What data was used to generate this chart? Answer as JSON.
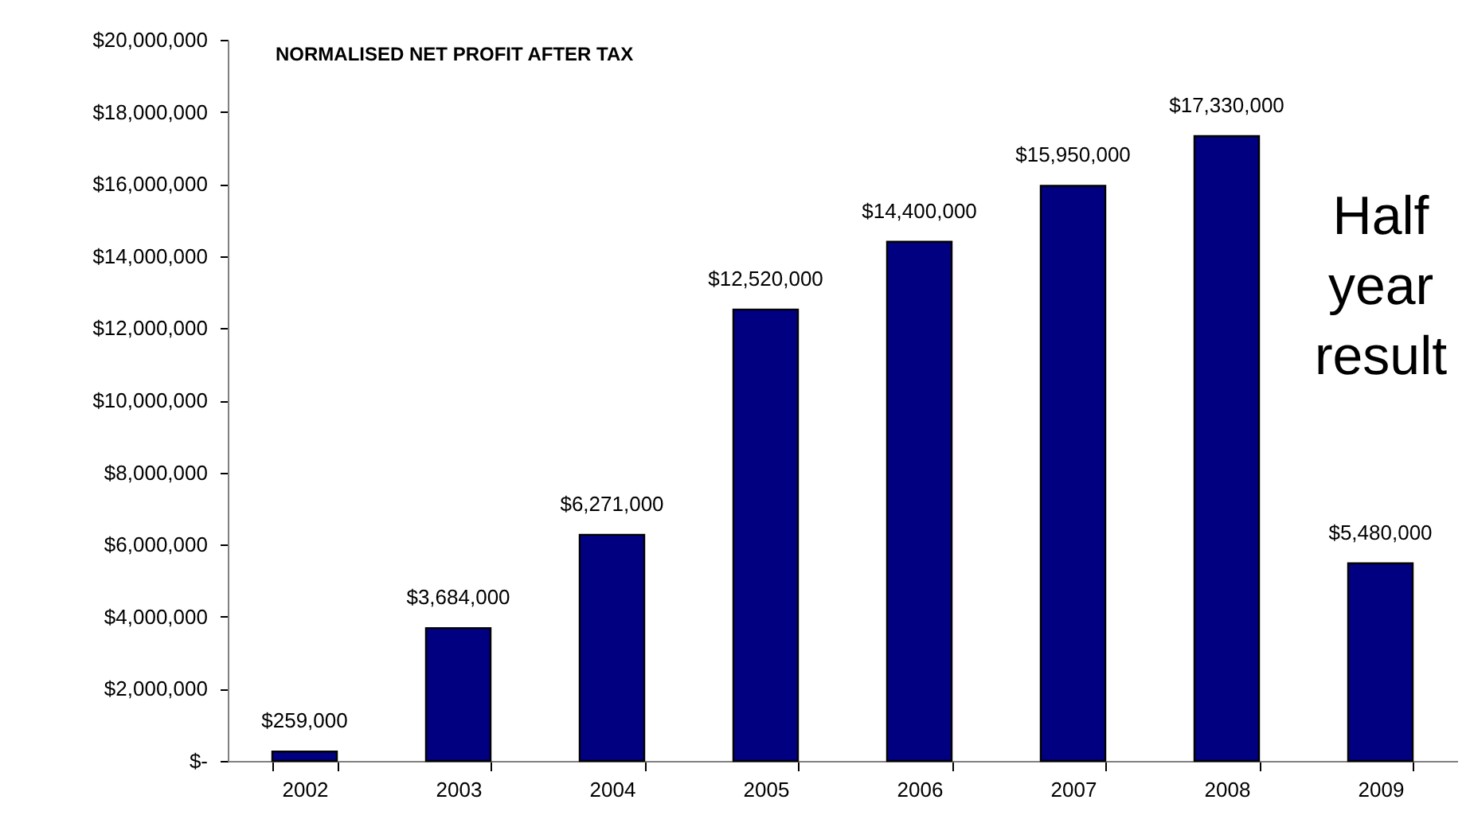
{
  "chart_data": {
    "type": "bar",
    "title": "NORMALISED NET PROFIT AFTER TAX",
    "categories": [
      "2002",
      "2003",
      "2004",
      "2005",
      "2006",
      "2007",
      "2008",
      "2009"
    ],
    "values": [
      259000,
      3684000,
      6271000,
      12520000,
      14400000,
      15950000,
      17330000,
      5480000
    ],
    "value_labels": [
      "$259,000",
      "$3,684,000",
      "$6,271,000",
      "$12,520,000",
      "$14,400,000",
      "$15,950,000",
      "$17,330,000",
      "$5,480,000"
    ],
    "color": "#000080",
    "ylim": [
      0,
      20000000
    ],
    "yticks": [
      {
        "value": 0,
        "label": "$-"
      },
      {
        "value": 2000000,
        "label": "$2,000,000"
      },
      {
        "value": 4000000,
        "label": "$4,000,000"
      },
      {
        "value": 6000000,
        "label": "$6,000,000"
      },
      {
        "value": 8000000,
        "label": "$8,000,000"
      },
      {
        "value": 10000000,
        "label": "$10,000,000"
      },
      {
        "value": 12000000,
        "label": "$12,000,000"
      },
      {
        "value": 14000000,
        "label": "$14,000,000"
      },
      {
        "value": 16000000,
        "label": "$16,000,000"
      },
      {
        "value": 18000000,
        "label": "$18,000,000"
      },
      {
        "value": 20000000,
        "label": "$20,000,000"
      }
    ],
    "annotations": [
      "Half year result"
    ],
    "grid": false
  }
}
